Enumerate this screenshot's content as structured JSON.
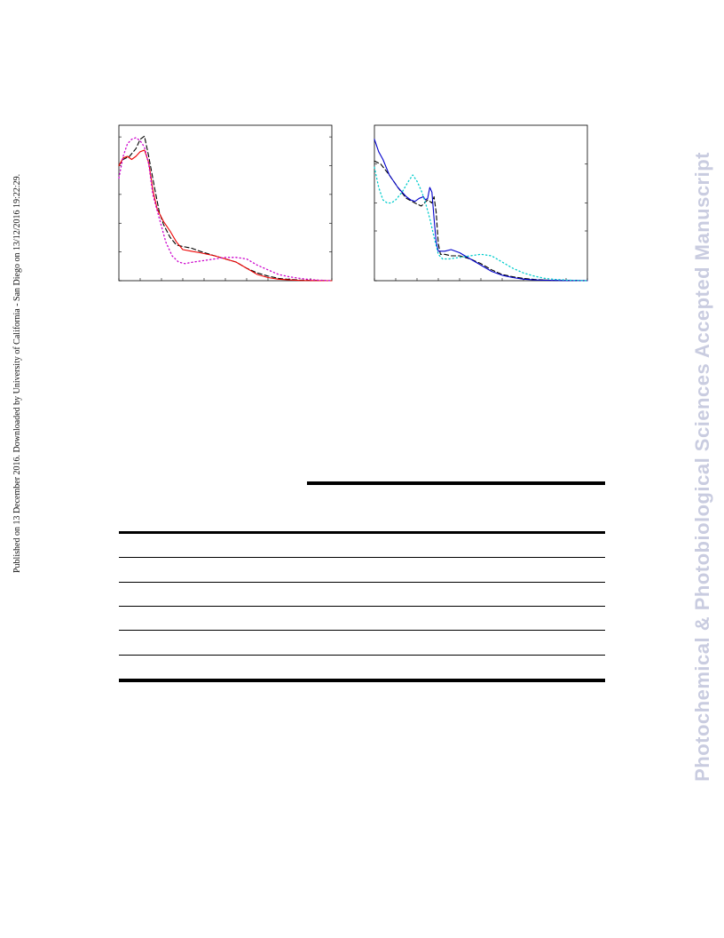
{
  "page": {
    "side_note": "Published on 13 December 2016. Downloaded by University of California - San Diego on 13/12/2016 19:22:29.",
    "watermark": "Photochemical & Photobiological Sciences Accepted Manuscript"
  },
  "chart_data": [
    {
      "type": "line",
      "xlim": [
        0,
        100
      ],
      "ylim": [
        0,
        100
      ],
      "grid": false,
      "series": [
        {
          "color": "#000000",
          "style": "dashed",
          "x": [
            0,
            2,
            5,
            8,
            10,
            12,
            14,
            17,
            19,
            21,
            24,
            27,
            30,
            34,
            38,
            45,
            50,
            55,
            60,
            65,
            70,
            75,
            80,
            85,
            90,
            95,
            100
          ],
          "y": [
            74,
            78,
            80,
            85,
            91,
            93,
            80,
            58,
            44,
            36,
            28,
            23,
            22,
            21,
            19,
            16,
            14,
            12,
            8,
            5,
            3,
            1.5,
            0.8,
            0.4,
            0.2,
            0.1,
            0
          ]
        },
        {
          "color": "#ee0000",
          "style": "solid",
          "x": [
            0,
            2,
            4,
            6,
            8,
            10,
            12,
            14,
            16,
            18,
            21,
            24,
            27,
            30,
            34,
            38,
            45,
            50,
            55,
            60,
            65,
            70,
            75,
            80,
            85,
            90,
            95,
            100
          ],
          "y": [
            74,
            79,
            80,
            78,
            80,
            83,
            84,
            76,
            58,
            46,
            38,
            32,
            25,
            20,
            19,
            18,
            16,
            14,
            12,
            8,
            4,
            2,
            1,
            0.5,
            0.2,
            0.1,
            0,
            0
          ]
        },
        {
          "color": "#cc00cc",
          "style": "dotted",
          "x": [
            0,
            2,
            4,
            6,
            8,
            10,
            12,
            14,
            16,
            19,
            22,
            25,
            28,
            31,
            35,
            40,
            45,
            50,
            55,
            60,
            65,
            70,
            75,
            80,
            85,
            90,
            95,
            100
          ],
          "y": [
            66,
            80,
            88,
            91,
            92,
            90,
            86,
            75,
            55,
            40,
            25,
            16,
            12,
            11,
            12,
            13,
            14,
            15,
            15,
            14,
            10,
            7,
            4,
            2.5,
            1.5,
            0.6,
            0.3,
            0
          ]
        }
      ]
    },
    {
      "type": "line",
      "xlim": [
        0,
        100
      ],
      "ylim": [
        0,
        100
      ],
      "grid": false,
      "series": [
        {
          "color": "#000000",
          "style": "dashed",
          "x": [
            0,
            3,
            7,
            11,
            15,
            19,
            22,
            25,
            27,
            28,
            29,
            30,
            31,
            33,
            36,
            40,
            45,
            50,
            55,
            60,
            65,
            70,
            75,
            80,
            85,
            90,
            95,
            100
          ],
          "y": [
            77,
            75,
            68,
            60,
            53,
            50,
            48,
            52,
            50,
            54,
            44,
            24,
            17,
            17,
            16,
            16,
            14,
            11,
            7,
            4,
            2.5,
            1.5,
            0.8,
            0.4,
            0.2,
            0.1,
            0.1,
            0
          ]
        },
        {
          "color": "#0000cc",
          "style": "solid",
          "x": [
            0,
            2,
            4,
            7,
            11,
            15,
            17,
            19,
            21,
            23,
            24,
            25,
            26,
            27,
            28,
            29,
            30,
            31,
            33,
            36,
            40,
            45,
            50,
            55,
            60,
            65,
            70,
            75,
            80,
            85,
            90,
            95,
            100
          ],
          "y": [
            91,
            83,
            78,
            68,
            60,
            54,
            52,
            51,
            53,
            54,
            52,
            53,
            60,
            57,
            40,
            25,
            19,
            19,
            19,
            20,
            18,
            14,
            10,
            6,
            3.5,
            2,
            1,
            0.5,
            0.3,
            0.2,
            0.1,
            0.1,
            0
          ]
        },
        {
          "color": "#00cccc",
          "style": "dotted",
          "x": [
            0,
            2,
            4,
            6,
            8,
            10,
            13,
            16,
            18,
            20,
            22,
            24,
            26,
            28,
            30,
            32,
            35,
            40,
            45,
            50,
            55,
            60,
            65,
            70,
            75,
            80,
            85,
            90,
            95,
            100
          ],
          "y": [
            73,
            60,
            52,
            50,
            50,
            52,
            57,
            64,
            68,
            64,
            58,
            50,
            40,
            28,
            17,
            14,
            14,
            15,
            16,
            17,
            16,
            12,
            8,
            5,
            3,
            1.5,
            0.8,
            0.4,
            0.2,
            0
          ]
        }
      ]
    }
  ]
}
